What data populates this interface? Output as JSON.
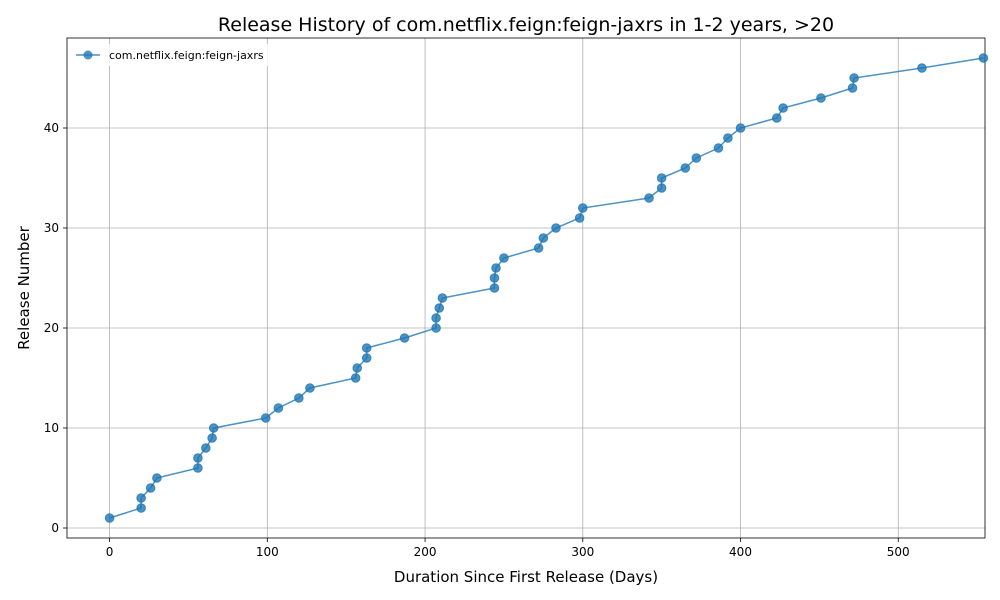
{
  "chart_data": {
    "type": "line",
    "title": "Release History of com.netflix.feign:feign-jaxrs in 1-2 years, >20",
    "xlabel": "Duration Since First Release (Days)",
    "ylabel": "Release Number",
    "xlim": [
      -27,
      555
    ],
    "ylim": [
      -1,
      49
    ],
    "xticks": [
      0,
      100,
      200,
      300,
      400,
      500
    ],
    "yticks": [
      0,
      10,
      20,
      30,
      40
    ],
    "grid": true,
    "legend_position": "top-left",
    "series": [
      {
        "name": "com.netflix.feign:feign-jaxrs",
        "color": "#1f77b4",
        "marker": "circle",
        "x": [
          0,
          20,
          20,
          26,
          30,
          56,
          56,
          61,
          65,
          66,
          99,
          107,
          120,
          127,
          156,
          157,
          163,
          163,
          187,
          207,
          207,
          209,
          211,
          244,
          244,
          245,
          250,
          272,
          275,
          283,
          298,
          300,
          342,
          350,
          350,
          365,
          372,
          386,
          392,
          400,
          423,
          427,
          451,
          471,
          472,
          515,
          554
        ],
        "y": [
          1,
          2,
          3,
          4,
          5,
          6,
          7,
          8,
          9,
          10,
          11,
          12,
          13,
          14,
          15,
          16,
          17,
          18,
          19,
          20,
          21,
          22,
          23,
          24,
          25,
          26,
          27,
          28,
          29,
          30,
          31,
          32,
          33,
          34,
          35,
          36,
          37,
          38,
          39,
          40,
          41,
          42,
          43,
          44,
          45,
          46,
          47
        ]
      }
    ]
  }
}
